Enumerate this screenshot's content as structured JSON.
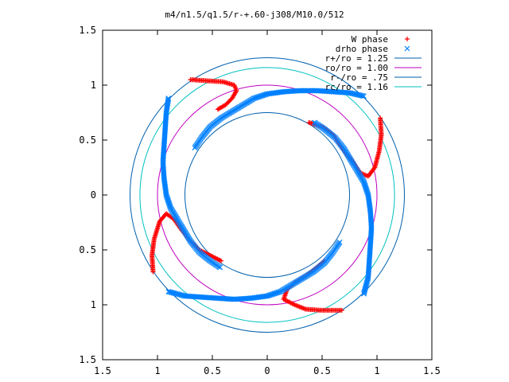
{
  "chart_data": {
    "type": "scatter",
    "title": "m4/n1.5/q1.5/r-+.60-j308/M10.0/512",
    "xlim": [
      -1.5,
      1.5
    ],
    "ylim": [
      -1.5,
      1.5
    ],
    "x_ticks": [
      {
        "value": -1.5,
        "label": "1.5"
      },
      {
        "value": -1.0,
        "label": "1"
      },
      {
        "value": -0.5,
        "label": "0.5"
      },
      {
        "value": 0.0,
        "label": "0"
      },
      {
        "value": 0.5,
        "label": "0.5"
      },
      {
        "value": 1.0,
        "label": "1"
      },
      {
        "value": 1.5,
        "label": "1.5"
      }
    ],
    "y_ticks": [
      {
        "value": 1.5,
        "label": "1.5"
      },
      {
        "value": 1.0,
        "label": "1"
      },
      {
        "value": 0.5,
        "label": "0.5"
      },
      {
        "value": 0.0,
        "label": "0"
      },
      {
        "value": -0.5,
        "label": "0.5"
      },
      {
        "value": -1.0,
        "label": "1"
      },
      {
        "value": -1.5,
        "label": "1.5"
      }
    ],
    "grid": false,
    "legend_position": "top-right",
    "series": [
      {
        "name": "W phase",
        "marker": "plus",
        "color": "#ff0000",
        "arms": [
          [
            [
              -0.7,
              1.05
            ],
            [
              -0.55,
              1.04
            ],
            [
              -0.4,
              1.03
            ],
            [
              -0.3,
              1.0
            ],
            [
              -0.28,
              0.95
            ],
            [
              -0.32,
              0.88
            ],
            [
              -0.38,
              0.82
            ],
            [
              -0.45,
              0.78
            ]
          ],
          [
            [
              1.03,
              0.7
            ],
            [
              1.04,
              0.55
            ],
            [
              1.02,
              0.4
            ],
            [
              0.98,
              0.25
            ],
            [
              0.92,
              0.17
            ],
            [
              0.85,
              0.2
            ],
            [
              0.78,
              0.3
            ],
            [
              0.7,
              0.4
            ],
            [
              0.6,
              0.55
            ],
            [
              0.5,
              0.62
            ],
            [
              0.38,
              0.66
            ]
          ],
          [
            [
              0.68,
              -1.05
            ],
            [
              0.5,
              -1.05
            ],
            [
              0.35,
              -1.04
            ],
            [
              0.25,
              -1.0
            ],
            [
              0.15,
              -0.95
            ],
            [
              0.18,
              -0.86
            ],
            [
              0.25,
              -0.8
            ],
            [
              0.35,
              -0.74
            ],
            [
              0.45,
              -0.66
            ],
            [
              0.52,
              -0.6
            ]
          ],
          [
            [
              -1.04,
              -0.7
            ],
            [
              -1.05,
              -0.55
            ],
            [
              -1.03,
              -0.4
            ],
            [
              -0.98,
              -0.24
            ],
            [
              -0.92,
              -0.17
            ],
            [
              -0.85,
              -0.22
            ],
            [
              -0.78,
              -0.32
            ],
            [
              -0.7,
              -0.42
            ],
            [
              -0.62,
              -0.5
            ],
            [
              -0.52,
              -0.55
            ],
            [
              -0.42,
              -0.6
            ]
          ]
        ]
      },
      {
        "name": "drho phase",
        "marker": "cross",
        "color": "#0080ff",
        "arms": [
          [
            [
              0.88,
              0.9
            ],
            [
              0.75,
              0.93
            ],
            [
              0.6,
              0.94
            ],
            [
              0.45,
              0.95
            ],
            [
              0.3,
              0.95
            ],
            [
              0.15,
              0.94
            ],
            [
              0.0,
              0.92
            ],
            [
              -0.12,
              0.88
            ],
            [
              -0.22,
              0.82
            ],
            [
              -0.32,
              0.76
            ],
            [
              -0.42,
              0.7
            ],
            [
              -0.52,
              0.62
            ],
            [
              -0.6,
              0.52
            ],
            [
              -0.66,
              0.43
            ]
          ],
          [
            [
              0.88,
              -0.9
            ],
            [
              0.92,
              -0.75
            ],
            [
              0.93,
              -0.6
            ],
            [
              0.94,
              -0.45
            ],
            [
              0.95,
              -0.3
            ],
            [
              0.94,
              -0.15
            ],
            [
              0.92,
              0.0
            ],
            [
              0.88,
              0.12
            ],
            [
              0.82,
              0.22
            ],
            [
              0.76,
              0.32
            ],
            [
              0.7,
              0.42
            ],
            [
              0.62,
              0.52
            ],
            [
              0.52,
              0.6
            ],
            [
              0.43,
              0.66
            ]
          ],
          [
            [
              -0.9,
              -0.88
            ],
            [
              -0.75,
              -0.92
            ],
            [
              -0.6,
              -0.93
            ],
            [
              -0.45,
              -0.94
            ],
            [
              -0.3,
              -0.95
            ],
            [
              -0.15,
              -0.94
            ],
            [
              0.0,
              -0.92
            ],
            [
              0.12,
              -0.88
            ],
            [
              0.22,
              -0.82
            ],
            [
              0.32,
              -0.76
            ],
            [
              0.42,
              -0.7
            ],
            [
              0.52,
              -0.62
            ],
            [
              0.6,
              -0.52
            ],
            [
              0.66,
              -0.43
            ]
          ],
          [
            [
              -0.9,
              0.88
            ],
            [
              -0.92,
              0.75
            ],
            [
              -0.93,
              0.6
            ],
            [
              -0.94,
              0.45
            ],
            [
              -0.95,
              0.3
            ],
            [
              -0.94,
              0.15
            ],
            [
              -0.92,
              0.0
            ],
            [
              -0.88,
              -0.12
            ],
            [
              -0.82,
              -0.22
            ],
            [
              -0.76,
              -0.32
            ],
            [
              -0.7,
              -0.42
            ],
            [
              -0.62,
              -0.52
            ],
            [
              -0.52,
              -0.6
            ],
            [
              -0.43,
              -0.66
            ]
          ]
        ]
      },
      {
        "name": "r+/ro = 1.25",
        "type": "circle",
        "radius": 1.25,
        "color": "#0060ad"
      },
      {
        "name": "ro/ro = 1.00",
        "type": "circle",
        "radius": 1.0,
        "color": "#c000c0"
      },
      {
        "name": "r-/ro = .75",
        "type": "circle",
        "radius": 0.75,
        "color": "#0060ad"
      },
      {
        "name": "rc/ro = 1.16",
        "type": "circle",
        "radius": 1.16,
        "color": "#00c0c0"
      }
    ]
  }
}
